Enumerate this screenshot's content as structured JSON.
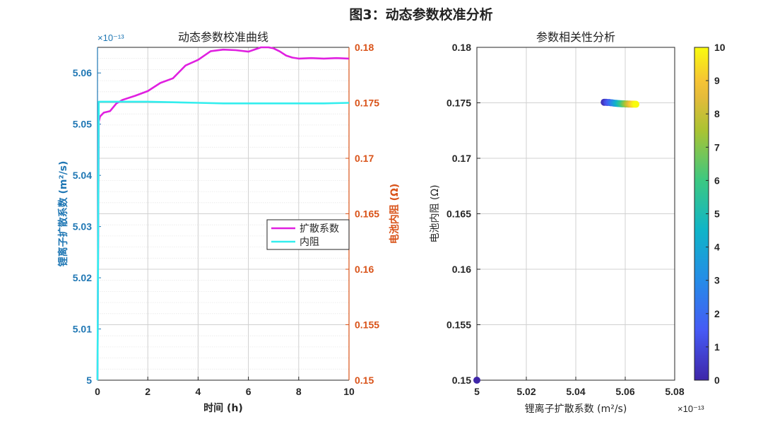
{
  "figure_title": "图3：动态参数校准分析",
  "colors": {
    "left_axis": "#1f77b4",
    "right_axis": "#d95319",
    "diffusion_line": "#e020e0",
    "resistance_line": "#33eeee",
    "grid": "#d0d0d0",
    "colormap": "parula"
  },
  "chart_data": [
    {
      "type": "line",
      "title": "动态参数校准曲线",
      "xlabel": "时间 (h)",
      "ylabel_left": "锂离子扩散系数 (m²/s)",
      "ylabel_right": "电池内阻 (Ω)",
      "left_exponent": "×10⁻¹³",
      "xlim": [
        0,
        10
      ],
      "ylim_left": [
        5.0,
        5.065
      ],
      "ylim_right": [
        0.15,
        0.18
      ],
      "x_ticks": [
        "0",
        "2",
        "4",
        "6",
        "8",
        "10"
      ],
      "yleft_ticks": [
        "5",
        "5.01",
        "5.02",
        "5.03",
        "5.04",
        "5.05",
        "5.06"
      ],
      "yright_ticks": [
        "0.15",
        "0.155",
        "0.16",
        "0.165",
        "0.17",
        "0.175",
        "0.18"
      ],
      "grid": true,
      "legend_position": "center-right",
      "series": [
        {
          "name": "扩散系数",
          "axis": "left",
          "x": [
            0,
            0.05,
            0.1,
            0.25,
            0.5,
            0.75,
            1.0,
            1.5,
            2.0,
            2.5,
            3.0,
            3.5,
            4.0,
            4.5,
            5.0,
            5.5,
            6.0,
            6.5,
            6.8,
            7.0,
            7.25,
            7.5,
            7.75,
            8.0,
            8.5,
            9.0,
            9.5,
            10.0
          ],
          "y": [
            5.0,
            5.0505,
            5.0515,
            5.052,
            5.0528,
            5.0538,
            5.055,
            5.0553,
            5.0567,
            5.0578,
            5.0592,
            5.0612,
            5.0628,
            5.064,
            5.0648,
            5.0642,
            5.0644,
            5.065,
            5.0651,
            5.0648,
            5.0642,
            5.0634,
            5.063,
            5.0628,
            5.0629,
            5.0628,
            5.0629,
            5.0628
          ]
        },
        {
          "name": "内阻",
          "axis": "right",
          "x": [
            0,
            0.05,
            0.1,
            1.0,
            2.0,
            3.0,
            4.0,
            5.0,
            6.0,
            7.0,
            8.0,
            9.0,
            10.0
          ],
          "y": [
            0.15,
            0.1751,
            0.1751,
            0.1751,
            0.1751,
            0.17505,
            0.175,
            0.17495,
            0.17495,
            0.17495,
            0.17495,
            0.17495,
            0.175
          ]
        }
      ]
    },
    {
      "type": "scatter",
      "title": "参数相关性分析",
      "xlabel": "锂离子扩散系数 (m²/s)",
      "ylabel": "电池内阻 (Ω)",
      "x_exponent": "×10⁻¹³",
      "xlim": [
        5.0,
        5.08
      ],
      "ylim": [
        0.15,
        0.18
      ],
      "x_ticks": [
        "5",
        "5.02",
        "5.04",
        "5.06",
        "5.08"
      ],
      "y_ticks": [
        "0.15",
        "0.155",
        "0.16",
        "0.165",
        "0.17",
        "0.175",
        "0.18"
      ],
      "grid": true,
      "colorbar": {
        "label_ticks": [
          "0",
          "1",
          "2",
          "3",
          "4",
          "5",
          "6",
          "7",
          "8",
          "9",
          "10"
        ],
        "range": [
          0,
          10
        ]
      },
      "points": [
        {
          "x": 5.0,
          "y": 0.15,
          "c": 0
        },
        {
          "x": 5.0515,
          "y": 0.17505,
          "c": 0.3
        },
        {
          "x": 5.0522,
          "y": 0.17505,
          "c": 0.7
        },
        {
          "x": 5.0528,
          "y": 0.17503,
          "c": 1.2
        },
        {
          "x": 5.0535,
          "y": 0.17503,
          "c": 1.6
        },
        {
          "x": 5.0541,
          "y": 0.17501,
          "c": 2.0
        },
        {
          "x": 5.0547,
          "y": 0.175,
          "c": 2.5
        },
        {
          "x": 5.0553,
          "y": 0.17498,
          "c": 3.0
        },
        {
          "x": 5.0559,
          "y": 0.17496,
          "c": 3.5
        },
        {
          "x": 5.0565,
          "y": 0.17495,
          "c": 4.0
        },
        {
          "x": 5.0571,
          "y": 0.17494,
          "c": 4.5
        },
        {
          "x": 5.0577,
          "y": 0.17493,
          "c": 5.0
        },
        {
          "x": 5.0583,
          "y": 0.17492,
          "c": 5.5
        },
        {
          "x": 5.0589,
          "y": 0.17491,
          "c": 6.0
        },
        {
          "x": 5.0595,
          "y": 0.17491,
          "c": 6.5
        },
        {
          "x": 5.0601,
          "y": 0.1749,
          "c": 7.0
        },
        {
          "x": 5.0607,
          "y": 0.1749,
          "c": 7.5
        },
        {
          "x": 5.0613,
          "y": 0.17489,
          "c": 8.0
        },
        {
          "x": 5.0619,
          "y": 0.17489,
          "c": 8.5
        },
        {
          "x": 5.0625,
          "y": 0.17488,
          "c": 9.0
        },
        {
          "x": 5.0631,
          "y": 0.17488,
          "c": 9.4
        },
        {
          "x": 5.0637,
          "y": 0.17488,
          "c": 9.7
        },
        {
          "x": 5.0643,
          "y": 0.17487,
          "c": 10
        }
      ]
    }
  ]
}
